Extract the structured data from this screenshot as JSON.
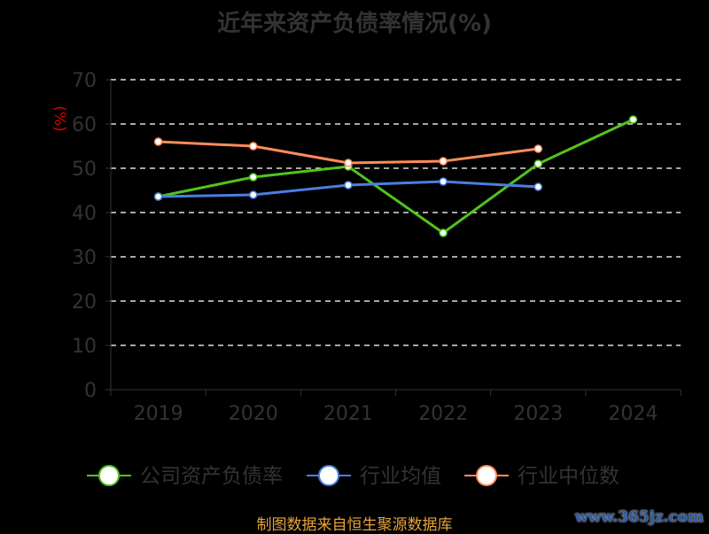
{
  "chart_data": {
    "type": "line",
    "title": "近年来资产负债率情况(%)",
    "ylabel": "(%)",
    "xlabel": "",
    "ylim": [
      0,
      70
    ],
    "yticks": [
      0,
      10,
      20,
      30,
      40,
      50,
      60,
      70
    ],
    "categories": [
      "2019",
      "2020",
      "2021",
      "2022",
      "2023",
      "2024"
    ],
    "grid": true,
    "legend_position": "bottom",
    "series": [
      {
        "name": "公司资产负债率",
        "color": "#52c41a",
        "values": [
          43.6,
          48.0,
          50.4,
          35.4,
          51.0,
          61.0
        ]
      },
      {
        "name": "行业均值",
        "color": "#4a7fe0",
        "values": [
          43.6,
          44.0,
          46.2,
          47.0,
          45.8,
          null
        ]
      },
      {
        "name": "行业中位数",
        "color": "#ff8c5a",
        "values": [
          56.0,
          55.0,
          51.2,
          51.6,
          54.4,
          null
        ]
      }
    ]
  },
  "footer": {
    "source": "制图数据来自恒生聚源数据库",
    "watermark": "www.365jz.com"
  }
}
